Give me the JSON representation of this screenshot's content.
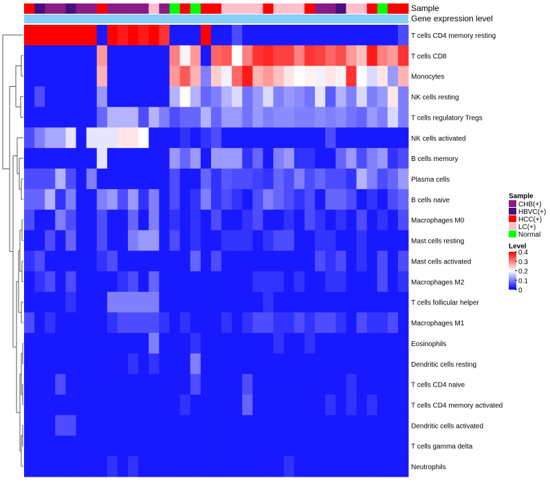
{
  "chart_data": {
    "type": "heatmap",
    "title": "",
    "annotation_labels": {
      "sample": "Sample",
      "gene_expression": "Gene expression level"
    },
    "row_labels": [
      "T cells CD4 memory resting",
      "T cells CD8",
      "Monocytes",
      "NK cells resting",
      "T cells regulatory  Tregs",
      "NK cells activated",
      "B cells memory",
      "Plasma cells",
      "B cells naive",
      "Macrophages M0",
      "Mast cells resting",
      "Mast cells activated",
      "Macrophages M2",
      "T cells follicular helper",
      "Macrophages M1",
      "Eosinophils",
      "Dendritic cells resting",
      "T cells CD4 naive",
      "T cells CD4 memory activated",
      "Dendritic cells activated",
      "T cells gamma delta",
      "Neutrophils"
    ],
    "sample_groups": [
      "HCC(+)",
      "HBVC(+)",
      "CHB(+)",
      "CHB(+)",
      "HBVC(+)",
      "CHB(+)",
      "CHB(+)",
      "HCC(+)",
      "CHB(+)",
      "CHB(+)",
      "CHB(+)",
      "CHB(+)",
      "LC(+)",
      "CHB(+)",
      "Normal",
      "HCC(+)",
      "Normal",
      "HCC(+)",
      "HCC(+)",
      "LC(+)",
      "LC(+)",
      "LC(+)",
      "LC(+)",
      "HCC(+)",
      "LC(+)",
      "LC(+)",
      "LC(+)",
      "HCC(+)",
      "CHB(+)",
      "CHB(+)",
      "HBVC(+)",
      "LC(+)",
      "LC(+)",
      "HCC(+)",
      "Normal",
      "HCC(+)",
      "HCC(+)"
    ],
    "values": [
      [
        0.4,
        0.4,
        0.4,
        0.4,
        0.4,
        0.4,
        0.4,
        0.02,
        0.4,
        0.38,
        0.4,
        0.38,
        0.4,
        0.36,
        0.02,
        0.02,
        0.02,
        0.4,
        0.02,
        0.02,
        0.06,
        0.02,
        0.02,
        0.02,
        0.02,
        0.02,
        0.02,
        0.02,
        0.02,
        0.02,
        0.02,
        0.02,
        0.02,
        0.02,
        0.02,
        0.02,
        0.06
      ],
      [
        0.02,
        0.02,
        0.02,
        0.02,
        0.02,
        0.02,
        0.02,
        0.28,
        0.02,
        0.02,
        0.02,
        0.02,
        0.02,
        0.02,
        0.3,
        0.21,
        0.28,
        0.02,
        0.32,
        0.33,
        0.2,
        0.3,
        0.36,
        0.37,
        0.35,
        0.35,
        0.3,
        0.36,
        0.35,
        0.32,
        0.34,
        0.28,
        0.25,
        0.38,
        0.3,
        0.28,
        0.36
      ],
      [
        0.02,
        0.02,
        0.02,
        0.02,
        0.02,
        0.02,
        0.02,
        0.26,
        0.02,
        0.02,
        0.02,
        0.02,
        0.02,
        0.02,
        0.28,
        0.33,
        0.26,
        0.1,
        0.24,
        0.19,
        0.32,
        0.38,
        0.26,
        0.28,
        0.25,
        0.22,
        0.2,
        0.21,
        0.19,
        0.22,
        0.21,
        0.36,
        0.2,
        0.17,
        0.22,
        0.12,
        0.26
      ],
      [
        0.02,
        0.06,
        0.02,
        0.02,
        0.02,
        0.02,
        0.02,
        0.12,
        0.02,
        0.02,
        0.02,
        0.02,
        0.02,
        0.02,
        0.14,
        0.2,
        0.14,
        0.08,
        0.1,
        0.14,
        0.17,
        0.09,
        0.12,
        0.17,
        0.1,
        0.12,
        0.11,
        0.09,
        0.18,
        0.07,
        0.14,
        0.1,
        0.17,
        0.1,
        0.12,
        0.22,
        0.1
      ],
      [
        0.02,
        0.02,
        0.02,
        0.02,
        0.02,
        0.02,
        0.02,
        0.08,
        0.14,
        0.14,
        0.14,
        0.06,
        0.14,
        0.1,
        0.06,
        0.08,
        0.08,
        0.14,
        0.08,
        0.12,
        0.12,
        0.09,
        0.12,
        0.1,
        0.11,
        0.11,
        0.1,
        0.1,
        0.11,
        0.1,
        0.11,
        0.09,
        0.08,
        0.12,
        0.1,
        0.17,
        0.1
      ],
      [
        0.06,
        0.1,
        0.13,
        0.13,
        0.18,
        0.02,
        0.18,
        0.18,
        0.18,
        0.22,
        0.22,
        0.2,
        0.02,
        0.02,
        0.02,
        0.04,
        0.02,
        0.04,
        0.06,
        0.02,
        0.02,
        0.02,
        0.02,
        0.02,
        0.02,
        0.02,
        0.02,
        0.02,
        0.02,
        0.06,
        0.02,
        0.02,
        0.02,
        0.02,
        0.02,
        0.02,
        0.02
      ],
      [
        0.02,
        0.02,
        0.02,
        0.02,
        0.02,
        0.02,
        0.02,
        0.18,
        0.02,
        0.02,
        0.02,
        0.02,
        0.02,
        0.02,
        0.12,
        0.08,
        0.12,
        0.02,
        0.12,
        0.12,
        0.12,
        0.04,
        0.08,
        0.02,
        0.1,
        0.12,
        0.04,
        0.04,
        0.02,
        0.02,
        0.08,
        0.12,
        0.06,
        0.1,
        0.12,
        0.04,
        0.06
      ],
      [
        0.06,
        0.06,
        0.06,
        0.14,
        0.06,
        0.02,
        0.1,
        0.02,
        0.02,
        0.02,
        0.02,
        0.02,
        0.02,
        0.02,
        0.06,
        0.02,
        0.02,
        0.08,
        0.04,
        0.07,
        0.06,
        0.06,
        0.05,
        0.04,
        0.08,
        0.06,
        0.1,
        0.06,
        0.08,
        0.06,
        0.06,
        0.04,
        0.14,
        0.1,
        0.06,
        0.08,
        0.12
      ],
      [
        0.08,
        0.08,
        0.14,
        0.04,
        0.1,
        0.02,
        0.02,
        0.1,
        0.12,
        0.06,
        0.12,
        0.04,
        0.1,
        0.02,
        0.06,
        0.02,
        0.04,
        0.1,
        0.04,
        0.06,
        0.04,
        0.02,
        0.06,
        0.1,
        0.08,
        0.06,
        0.04,
        0.06,
        0.02,
        0.08,
        0.08,
        0.06,
        0.02,
        0.04,
        0.02,
        0.06,
        0.08
      ],
      [
        0.06,
        0.02,
        0.02,
        0.1,
        0.06,
        0.02,
        0.02,
        0.06,
        0.02,
        0.02,
        0.08,
        0.02,
        0.1,
        0.02,
        0.04,
        0.02,
        0.04,
        0.02,
        0.06,
        0.02,
        0.02,
        0.04,
        0.06,
        0.02,
        0.02,
        0.04,
        0.02,
        0.06,
        0.04,
        0.02,
        0.04,
        0.02,
        0.06,
        0.02,
        0.04,
        0.02,
        0.06
      ],
      [
        0.02,
        0.02,
        0.06,
        0.02,
        0.08,
        0.02,
        0.02,
        0.06,
        0.02,
        0.02,
        0.1,
        0.12,
        0.12,
        0.02,
        0.06,
        0.02,
        0.04,
        0.02,
        0.02,
        0.04,
        0.04,
        0.04,
        0.02,
        0.04,
        0.06,
        0.06,
        0.02,
        0.02,
        0.04,
        0.04,
        0.02,
        0.02,
        0.04,
        0.02,
        0.02,
        0.02,
        0.02
      ],
      [
        0.04,
        0.06,
        0.02,
        0.02,
        0.02,
        0.02,
        0.02,
        0.04,
        0.06,
        0.02,
        0.02,
        0.02,
        0.02,
        0.02,
        0.02,
        0.02,
        0.08,
        0.02,
        0.06,
        0.02,
        0.02,
        0.02,
        0.02,
        0.02,
        0.02,
        0.02,
        0.02,
        0.02,
        0.06,
        0.04,
        0.06,
        0.02,
        0.04,
        0.02,
        0.06,
        0.02,
        0.06
      ],
      [
        0.02,
        0.04,
        0.06,
        0.02,
        0.06,
        0.02,
        0.02,
        0.02,
        0.02,
        0.04,
        0.06,
        0.02,
        0.08,
        0.02,
        0.02,
        0.02,
        0.02,
        0.02,
        0.02,
        0.02,
        0.02,
        0.02,
        0.04,
        0.04,
        0.04,
        0.02,
        0.04,
        0.02,
        0.02,
        0.04,
        0.04,
        0.02,
        0.02,
        0.02,
        0.06,
        0.02,
        0.04
      ],
      [
        0.02,
        0.02,
        0.02,
        0.02,
        0.04,
        0.02,
        0.02,
        0.02,
        0.1,
        0.1,
        0.1,
        0.1,
        0.1,
        0.02,
        0.02,
        0.02,
        0.02,
        0.02,
        0.02,
        0.02,
        0.02,
        0.02,
        0.02,
        0.04,
        0.02,
        0.02,
        0.02,
        0.02,
        0.02,
        0.02,
        0.02,
        0.02,
        0.02,
        0.02,
        0.02,
        0.02,
        0.02
      ],
      [
        0.06,
        0.02,
        0.04,
        0.02,
        0.02,
        0.02,
        0.02,
        0.02,
        0.04,
        0.06,
        0.06,
        0.06,
        0.06,
        0.04,
        0.02,
        0.04,
        0.02,
        0.02,
        0.02,
        0.04,
        0.02,
        0.04,
        0.06,
        0.06,
        0.04,
        0.04,
        0.06,
        0.04,
        0.06,
        0.06,
        0.04,
        0.02,
        0.06,
        0.04,
        0.04,
        0.06,
        0.02
      ],
      [
        0.02,
        0.02,
        0.02,
        0.02,
        0.02,
        0.02,
        0.02,
        0.02,
        0.02,
        0.02,
        0.02,
        0.02,
        0.1,
        0.02,
        0.02,
        0.02,
        0.04,
        0.02,
        0.02,
        0.02,
        0.02,
        0.02,
        0.02,
        0.02,
        0.04,
        0.02,
        0.02,
        0.04,
        0.02,
        0.02,
        0.02,
        0.02,
        0.02,
        0.02,
        0.02,
        0.02,
        0.02
      ],
      [
        0.02,
        0.02,
        0.02,
        0.02,
        0.02,
        0.02,
        0.02,
        0.02,
        0.02,
        0.02,
        0.04,
        0.02,
        0.04,
        0.02,
        0.02,
        0.02,
        0.1,
        0.02,
        0.02,
        0.02,
        0.02,
        0.02,
        0.02,
        0.02,
        0.02,
        0.02,
        0.02,
        0.02,
        0.02,
        0.02,
        0.02,
        0.02,
        0.02,
        0.02,
        0.02,
        0.02,
        0.02
      ],
      [
        0.02,
        0.02,
        0.02,
        0.06,
        0.02,
        0.02,
        0.02,
        0.02,
        0.02,
        0.02,
        0.02,
        0.02,
        0.02,
        0.02,
        0.02,
        0.02,
        0.06,
        0.02,
        0.02,
        0.02,
        0.02,
        0.06,
        0.02,
        0.02,
        0.02,
        0.02,
        0.02,
        0.02,
        0.02,
        0.02,
        0.02,
        0.04,
        0.02,
        0.02,
        0.02,
        0.02,
        0.02
      ],
      [
        0.02,
        0.02,
        0.02,
        0.02,
        0.02,
        0.02,
        0.02,
        0.02,
        0.02,
        0.02,
        0.02,
        0.02,
        0.02,
        0.02,
        0.02,
        0.04,
        0.02,
        0.02,
        0.02,
        0.02,
        0.02,
        0.08,
        0.02,
        0.02,
        0.02,
        0.02,
        0.02,
        0.02,
        0.02,
        0.04,
        0.02,
        0.04,
        0.02,
        0.04,
        0.02,
        0.02,
        0.02
      ],
      [
        0.02,
        0.02,
        0.02,
        0.06,
        0.06,
        0.02,
        0.02,
        0.02,
        0.02,
        0.02,
        0.02,
        0.02,
        0.02,
        0.02,
        0.02,
        0.02,
        0.02,
        0.02,
        0.02,
        0.02,
        0.02,
        0.02,
        0.02,
        0.02,
        0.02,
        0.02,
        0.02,
        0.02,
        0.02,
        0.02,
        0.02,
        0.02,
        0.02,
        0.02,
        0.02,
        0.02,
        0.02
      ],
      [
        0.02,
        0.02,
        0.02,
        0.02,
        0.02,
        0.02,
        0.02,
        0.02,
        0.02,
        0.02,
        0.02,
        0.02,
        0.02,
        0.02,
        0.02,
        0.02,
        0.02,
        0.02,
        0.02,
        0.02,
        0.02,
        0.02,
        0.02,
        0.02,
        0.02,
        0.02,
        0.02,
        0.02,
        0.02,
        0.02,
        0.02,
        0.02,
        0.02,
        0.02,
        0.02,
        0.02,
        0.02
      ],
      [
        0.02,
        0.02,
        0.02,
        0.02,
        0.02,
        0.02,
        0.02,
        0.02,
        0.04,
        0.02,
        0.04,
        0.02,
        0.02,
        0.02,
        0.02,
        0.02,
        0.02,
        0.02,
        0.02,
        0.02,
        0.02,
        0.02,
        0.02,
        0.02,
        0.02,
        0.04,
        0.02,
        0.02,
        0.02,
        0.02,
        0.02,
        0.02,
        0.02,
        0.02,
        0.02,
        0.02,
        0.02
      ]
    ],
    "value_range": [
      0,
      0.4
    ],
    "legend": {
      "sample_title": "Sample",
      "sample_items": [
        {
          "label": "CHB(+)",
          "color": "#8B1A89"
        },
        {
          "label": "HBVC(+)",
          "color": "#4B0E7C"
        },
        {
          "label": "HCC(+)",
          "color": "#FF0000"
        },
        {
          "label": "LC(+)",
          "color": "#FFC0CB"
        },
        {
          "label": "Normal",
          "color": "#00FF00"
        }
      ],
      "level_title": "Level",
      "level_ticks": [
        "0.4",
        "0.3",
        "0.2",
        "0.1",
        "0"
      ],
      "level_tick_values": [
        0.4,
        0.3,
        0.2,
        0.1,
        0
      ],
      "color_low": "#0000FF",
      "color_mid": "#FFFFFF",
      "color_high": "#FF0000",
      "gene_expression_bar_color": "#87CEFA"
    }
  }
}
